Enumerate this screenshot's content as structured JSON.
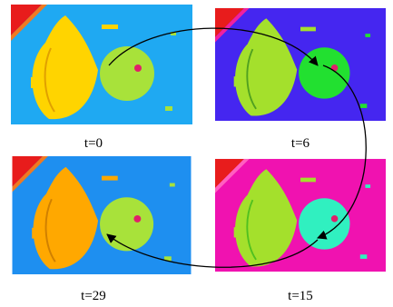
{
  "panels": [
    {
      "label": "t=0"
    },
    {
      "label": "t=6"
    },
    {
      "label": "t=29"
    },
    {
      "label": "t=15"
    }
  ]
}
